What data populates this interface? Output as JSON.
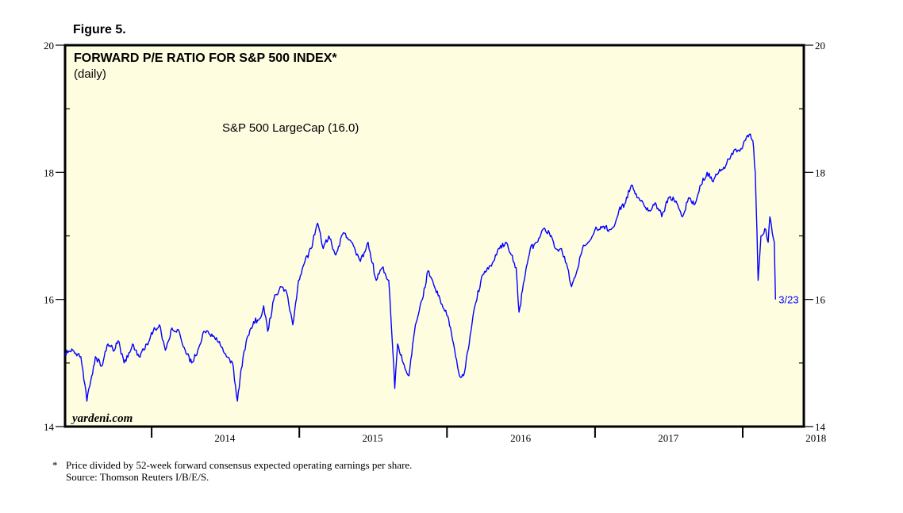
{
  "figure_label": "Figure 5.",
  "footnote": {
    "marker": "*",
    "line1": "Price divided by 52-week forward consensus expected operating earnings per share.",
    "line2": "Source: Thomson Reuters I/B/E/S."
  },
  "colors": {
    "panel_bg": "#fffde0",
    "line": "#0000ff",
    "frame": "#000000"
  },
  "chart_data": {
    "type": "line",
    "title": "FORWARD P/E RATIO FOR S&P 500 INDEX*",
    "subtitle": "(daily)",
    "watermark": "yardeni.com",
    "ylim": [
      14,
      20
    ],
    "yticks": [
      14,
      16,
      18,
      20
    ],
    "xlim": [
      "2013-06-01",
      "2018-06-01"
    ],
    "xtick_labels": [
      "2014",
      "2015",
      "2016",
      "2017",
      "2018"
    ],
    "grid": false,
    "series": [
      {
        "name": "S&P 500 LargeCap (16.0)",
        "last_label": "3/23",
        "x": [
          "2013-06-01",
          "2013-06-20",
          "2013-07-10",
          "2013-07-25",
          "2013-08-15",
          "2013-08-30",
          "2013-09-15",
          "2013-10-01",
          "2013-10-10",
          "2013-10-25",
          "2013-11-15",
          "2013-12-01",
          "2013-12-20",
          "2014-01-05",
          "2014-01-20",
          "2014-02-04",
          "2014-02-20",
          "2014-03-10",
          "2014-03-25",
          "2014-04-10",
          "2014-04-25",
          "2014-05-10",
          "2014-05-25",
          "2014-06-10",
          "2014-06-30",
          "2014-07-20",
          "2014-08-01",
          "2014-08-10",
          "2014-08-25",
          "2014-09-10",
          "2014-09-25",
          "2014-10-05",
          "2014-10-15",
          "2014-10-30",
          "2014-11-15",
          "2014-12-01",
          "2014-12-16",
          "2014-12-30",
          "2015-01-15",
          "2015-01-30",
          "2015-02-15",
          "2015-03-01",
          "2015-03-15",
          "2015-04-01",
          "2015-04-20",
          "2015-05-10",
          "2015-06-01",
          "2015-06-20",
          "2015-07-10",
          "2015-07-25",
          "2015-08-10",
          "2015-08-20",
          "2015-08-25",
          "2015-09-01",
          "2015-09-15",
          "2015-09-29",
          "2015-10-15",
          "2015-11-01",
          "2015-11-15",
          "2015-12-01",
          "2015-12-15",
          "2016-01-05",
          "2016-01-20",
          "2016-02-01",
          "2016-02-11",
          "2016-02-25",
          "2016-03-10",
          "2016-03-25",
          "2016-04-10",
          "2016-04-25",
          "2016-05-10",
          "2016-05-25",
          "2016-06-08",
          "2016-06-20",
          "2016-06-27",
          "2016-07-10",
          "2016-07-25",
          "2016-08-10",
          "2016-08-25",
          "2016-09-10",
          "2016-09-25",
          "2016-10-10",
          "2016-10-25",
          "2016-11-04",
          "2016-11-15",
          "2016-12-01",
          "2016-12-15",
          "2017-01-01",
          "2017-01-20",
          "2017-02-05",
          "2017-02-20",
          "2017-03-01",
          "2017-03-15",
          "2017-04-01",
          "2017-04-15",
          "2017-05-01",
          "2017-05-15",
          "2017-06-01",
          "2017-06-15",
          "2017-07-01",
          "2017-07-20",
          "2017-08-05",
          "2017-08-20",
          "2017-09-05",
          "2017-09-20",
          "2017-10-05",
          "2017-10-20",
          "2017-11-05",
          "2017-11-20",
          "2017-12-05",
          "2017-12-20",
          "2018-01-01",
          "2018-01-10",
          "2018-01-20",
          "2018-01-26",
          "2018-02-01",
          "2018-02-05",
          "2018-02-08",
          "2018-02-15",
          "2018-02-27",
          "2018-03-05",
          "2018-03-09",
          "2018-03-15",
          "2018-03-20",
          "2018-03-23"
        ],
        "y": [
          15.15,
          15.2,
          15.1,
          14.4,
          15.1,
          14.95,
          15.3,
          15.2,
          15.35,
          15.0,
          15.3,
          15.1,
          15.3,
          15.5,
          15.6,
          15.2,
          15.55,
          15.5,
          15.2,
          15.0,
          15.2,
          15.5,
          15.45,
          15.4,
          15.15,
          15.0,
          14.4,
          14.9,
          15.4,
          15.65,
          15.7,
          15.9,
          15.5,
          16.0,
          16.2,
          16.1,
          15.6,
          16.3,
          16.6,
          16.8,
          17.2,
          16.8,
          17.0,
          16.7,
          17.05,
          16.9,
          16.6,
          16.9,
          16.3,
          16.5,
          16.3,
          15.2,
          14.6,
          15.3,
          15.0,
          14.8,
          15.6,
          16.0,
          16.45,
          16.2,
          16.0,
          15.7,
          15.2,
          14.8,
          14.8,
          15.3,
          15.9,
          16.3,
          16.5,
          16.6,
          16.8,
          16.9,
          16.7,
          16.5,
          15.8,
          16.3,
          16.8,
          16.9,
          17.1,
          17.05,
          16.8,
          16.8,
          16.5,
          16.2,
          16.4,
          16.8,
          16.9,
          17.1,
          17.15,
          17.1,
          17.2,
          17.4,
          17.5,
          17.8,
          17.6,
          17.5,
          17.4,
          17.5,
          17.3,
          17.6,
          17.55,
          17.3,
          17.6,
          17.5,
          17.8,
          18.0,
          17.85,
          18.05,
          18.1,
          18.3,
          18.35,
          18.4,
          18.55,
          18.6,
          18.5,
          18.0,
          17.1,
          16.3,
          17.0,
          17.1,
          16.9,
          17.3,
          17.05,
          16.9,
          16.0
        ]
      }
    ]
  }
}
